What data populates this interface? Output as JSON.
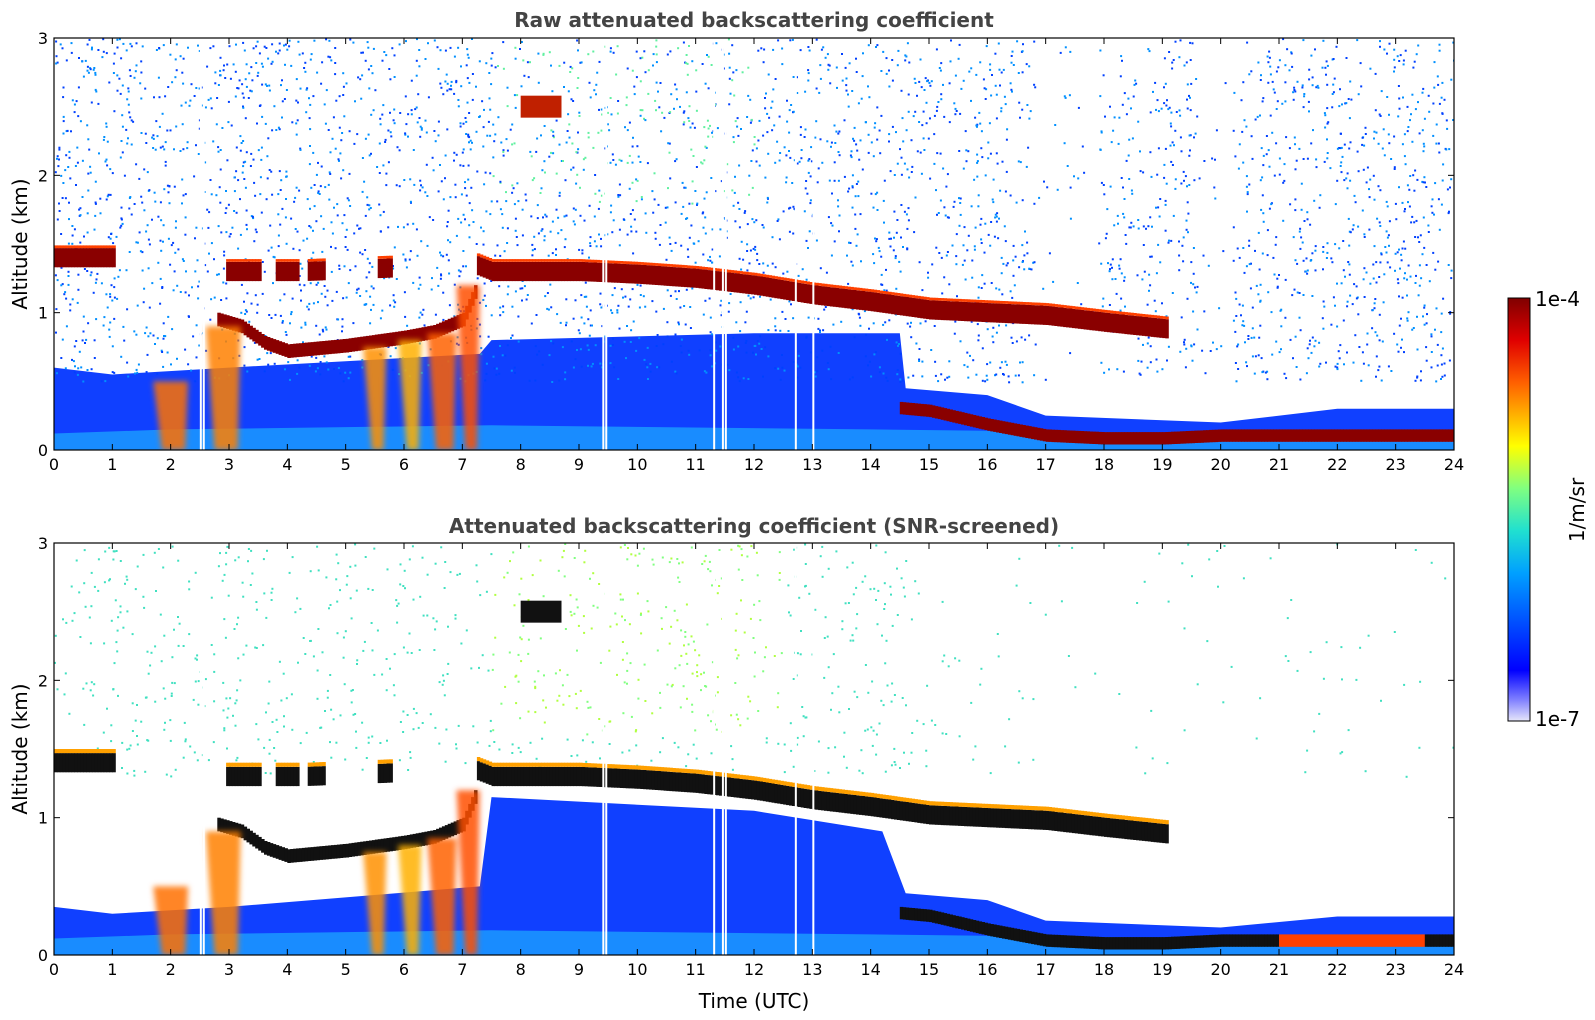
{
  "chart_data": [
    {
      "type": "heatmap",
      "title": "Raw attenuated backscattering coefficient",
      "xlabel": "",
      "ylabel": "Altitude (km)",
      "xlim": [
        0,
        24
      ],
      "ylim": [
        0,
        3
      ],
      "xticks": [
        0,
        1,
        2,
        3,
        4,
        5,
        6,
        7,
        8,
        9,
        10,
        11,
        12,
        13,
        14,
        15,
        16,
        17,
        18,
        19,
        20,
        21,
        22,
        23,
        24
      ],
      "yticks": [
        0,
        1,
        2,
        3
      ],
      "features": {
        "upper_cloud_layer": {
          "x": [
            0,
            1,
            2.9,
            3.5,
            4.3,
            7.2,
            7.5,
            9,
            10,
            11,
            12,
            13,
            14,
            14.5,
            15,
            16,
            17,
            18,
            19.1
          ],
          "y": [
            1.4,
            1.4,
            1.3,
            1.3,
            1.3,
            1.35,
            1.3,
            1.3,
            1.28,
            1.25,
            1.2,
            1.13,
            1.08,
            1.05,
            1.02,
            1.0,
            0.98,
            0.93,
            0.88
          ]
        },
        "lower_cloud_layer": {
          "x": [
            2.8,
            3.2,
            3.6,
            4,
            5,
            6,
            6.5,
            7,
            7.2
          ],
          "y": [
            0.95,
            0.9,
            0.78,
            0.72,
            0.76,
            0.82,
            0.86,
            0.95,
            1.15
          ]
        },
        "surface_layer": {
          "x": [
            14.5,
            15,
            16,
            17,
            18,
            19,
            20,
            21,
            22,
            23,
            24
          ],
          "y": [
            0.3,
            0.28,
            0.18,
            0.1,
            0.08,
            0.08,
            0.1,
            0.1,
            0.1,
            0.1,
            0.1
          ]
        },
        "aerosol_patch": {
          "x": [
            8,
            8.7
          ],
          "y": [
            2.42,
            2.58
          ]
        }
      }
    },
    {
      "type": "heatmap",
      "title": "Attenuated backscattering coefficient (SNR-screened)",
      "xlabel": "Time (UTC)",
      "ylabel": "Altitude (km)",
      "xlim": [
        0,
        24
      ],
      "ylim": [
        0,
        3
      ],
      "xticks": [
        0,
        1,
        2,
        3,
        4,
        5,
        6,
        7,
        8,
        9,
        10,
        11,
        12,
        13,
        14,
        15,
        16,
        17,
        18,
        19,
        20,
        21,
        22,
        23,
        24
      ],
      "yticks": [
        0,
        1,
        2,
        3
      ]
    }
  ],
  "colorbar": {
    "max_label": "1e-4",
    "min_label": "1e-7",
    "unit_label": "1/m/sr",
    "scale": "log",
    "colormap": "jet"
  }
}
